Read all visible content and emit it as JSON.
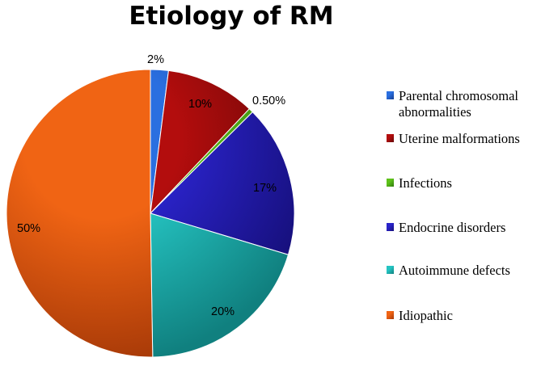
{
  "chart_data": {
    "type": "pie",
    "title": "Etiology of RM",
    "start_angle_deg": 0,
    "direction": "clockwise",
    "slices": [
      {
        "name": "Parental chromosomal abnormalities",
        "value": 2,
        "label": "2%",
        "color": "#2a6fe0",
        "color_dark": "#163f92"
      },
      {
        "name": "Uterine malformations",
        "value": 10,
        "label": "10%",
        "color": "#b30d0d",
        "color_dark": "#650707"
      },
      {
        "name": "Infections",
        "value": 0.5,
        "label": "0.50%",
        "color": "#5ec21a",
        "color_dark": "#2f7a0c"
      },
      {
        "name": "Endocrine disorders",
        "value": 17,
        "label": "17%",
        "color": "#2a23c9",
        "color_dark": "#160f7a"
      },
      {
        "name": "Autoimmune defects",
        "value": 20,
        "label": "20%",
        "color": "#25c4c2",
        "color_dark": "#10807f"
      },
      {
        "name": "Idiopathic",
        "value": 50,
        "label": "50%",
        "color": "#f06414",
        "color_dark": "#a83a08"
      }
    ],
    "legend_position": "right"
  }
}
